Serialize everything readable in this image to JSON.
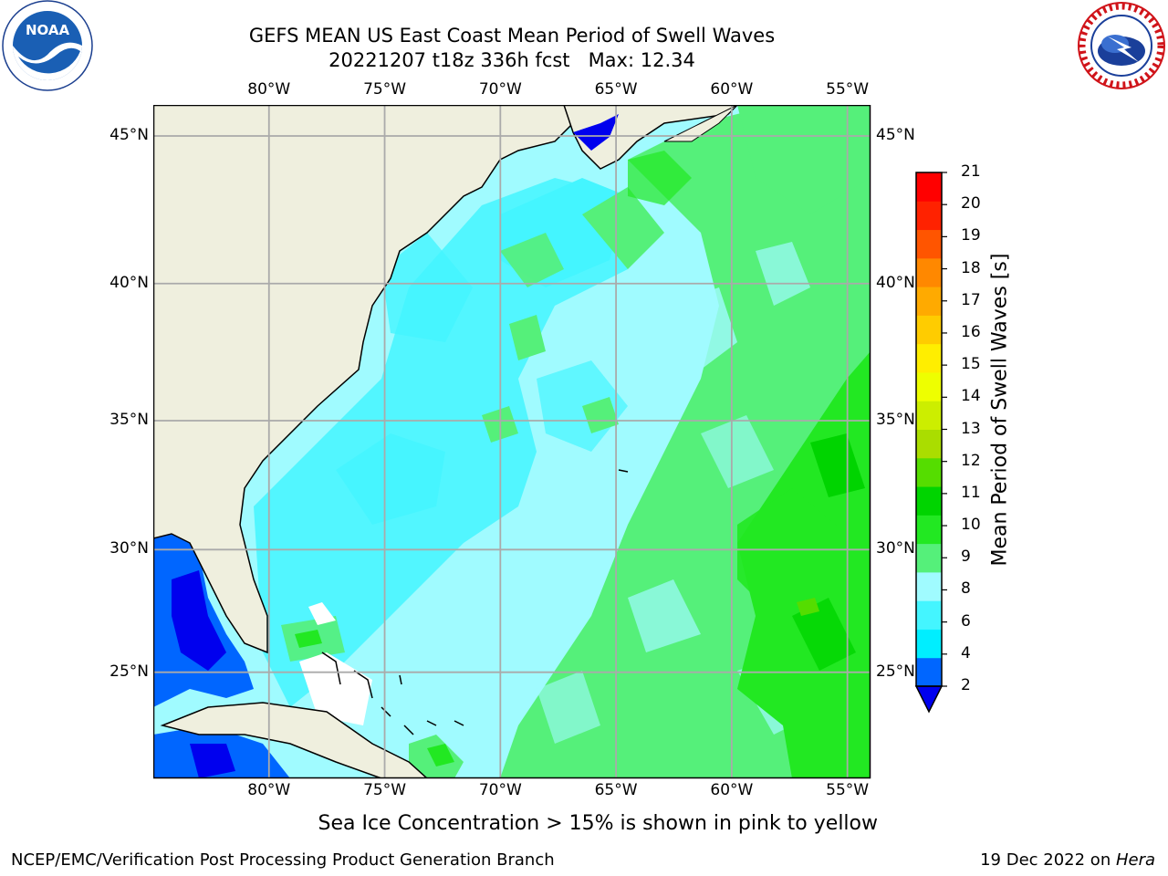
{
  "title": {
    "line1": "GEFS MEAN US East Coast Mean Period of Swell Waves",
    "line2": "20221207 t18z 336h fcst   Max: 12.34"
  },
  "logos": {
    "left": {
      "name": "NOAA",
      "ring_text": "NATIONAL OCEANIC AND ATMOSPHERIC ADMINISTRATION · U.S. DEPARTMENT OF COMMERCE"
    },
    "right": {
      "name": "NATIONAL WEATHER SERVICE"
    }
  },
  "map": {
    "lon_labels": [
      "80°W",
      "75°W",
      "70°W",
      "65°W",
      "60°W",
      "55°W"
    ],
    "lon_values": [
      -80,
      -75,
      -70,
      -65,
      -60,
      -55
    ],
    "lat_labels": [
      "45°N",
      "40°N",
      "35°N",
      "30°N",
      "25°N"
    ],
    "lat_values": [
      45,
      40,
      35,
      30,
      25
    ],
    "lon_range": [
      -85,
      -54
    ],
    "lat_range": [
      20.5,
      46
    ],
    "land_color": "#efefde",
    "gridlines": true
  },
  "colorbar": {
    "label": "Mean Period of Swell Waves [s]",
    "ticks": [
      "2",
      "4",
      "6",
      "8",
      "9",
      "10",
      "11",
      "12",
      "13",
      "14",
      "15",
      "16",
      "17",
      "18",
      "19",
      "20",
      "21"
    ],
    "colors": [
      "#0066ff",
      "#00eeff",
      "#44f5ff",
      "#a0fbff",
      "#55f07a",
      "#22e822",
      "#00d400",
      "#55dd00",
      "#aadd00",
      "#ccee00",
      "#eeff00",
      "#ffee00",
      "#ffcc00",
      "#ffaa00",
      "#ff8800",
      "#ff5500",
      "#ff2200",
      "#ff0000"
    ],
    "under_color": "#0000ee"
  },
  "caption": "Sea Ice Concentration > 15% is shown in pink to yellow",
  "footer": {
    "left": "NCEP/EMC/Verification Post Processing Product Generation Branch",
    "right_prefix": "19 Dec 2022 on ",
    "right_host": "Hera"
  }
}
